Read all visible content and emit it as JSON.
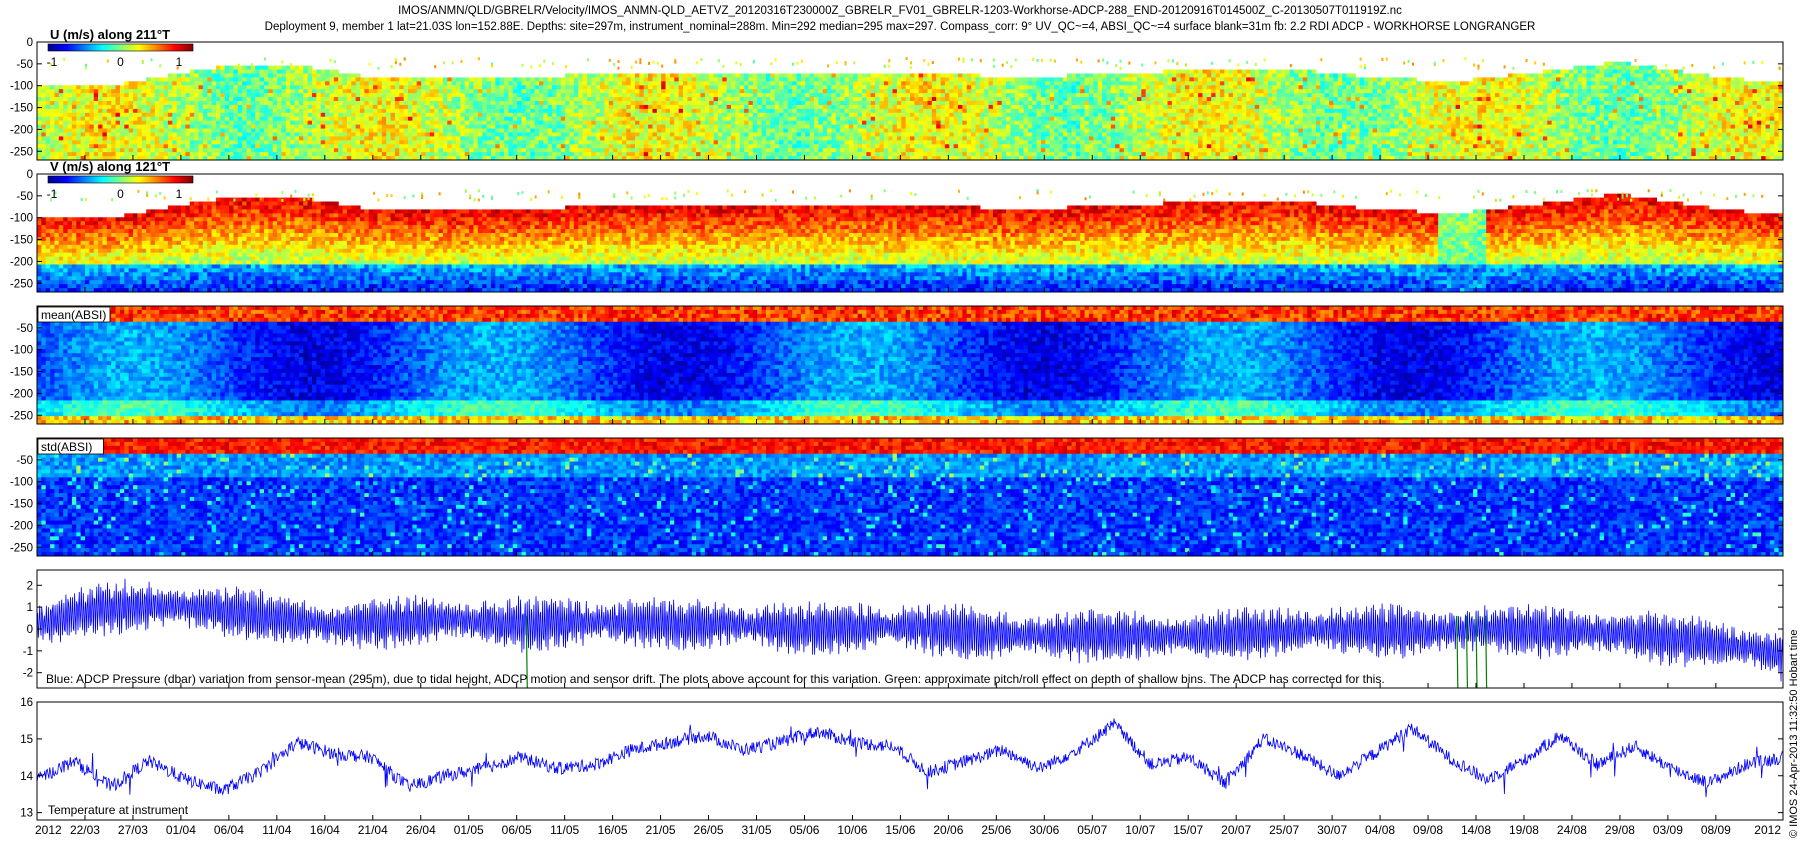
{
  "header": {
    "line1": "IMOS/ANMN/QLD/GBRELR/Velocity/IMOS_ANMN-QLD_AETVZ_20120316T230000Z_GBRELR_FV01_GBRELR-1203-Workhorse-ADCP-288_END-20120916T014500Z_C-20130507T011919Z.nc",
    "line2": "Deployment 9, member 1 lat=21.03S lon=152.88E. Depths: site=297m, instrument_nominal=288m. Min=292 median=295 max=297. Compass_corr: 9° UV_QC~=4, ABSI_QC~=4 surface blank=31m fb: 2.2 RDI ADCP - WORKHORSE LONGRANGER"
  },
  "side_label": "© IMOS 24-Apr-2013 11:32:50 Hobart time",
  "colors": {
    "trace_blue": "#0000ff",
    "trace_green": "#008000",
    "axis": "#000000"
  },
  "chart_data": [
    {
      "type": "heatmap",
      "title": "U (m/s) along 211°T",
      "yticks": [
        "0",
        "-50",
        "-100",
        "-150",
        "-200",
        "-250"
      ],
      "ylim": [
        -270,
        0
      ],
      "colorbar": {
        "min": -1,
        "max": 1,
        "ticks": [
          "-1",
          "0",
          "1"
        ]
      },
      "value_range": [
        -0.4,
        0.5
      ],
      "mean_value": 0.1
    },
    {
      "type": "heatmap",
      "title": "V (m/s) along 121°T",
      "yticks": [
        "0",
        "-50",
        "-100",
        "-150",
        "-200",
        "-250"
      ],
      "ylim": [
        -270,
        0
      ],
      "colorbar": {
        "min": -1,
        "max": 1,
        "ticks": [
          "-1",
          "0",
          "1"
        ]
      },
      "value_range": [
        -0.2,
        0.9
      ],
      "mean_value": 0.55
    },
    {
      "type": "heatmap",
      "title": "mean(ABSI)",
      "yticks": [
        "-50",
        "-100",
        "-150",
        "-200",
        "-250"
      ],
      "ylim": [
        -270,
        0
      ]
    },
    {
      "type": "heatmap",
      "title": "std(ABSI)",
      "yticks": [
        "-50",
        "-100",
        "-150",
        "-200",
        "-250"
      ],
      "ylim": [
        -270,
        0
      ]
    },
    {
      "type": "line",
      "yticks": [
        "2",
        "1",
        "0",
        "-1",
        "-2"
      ],
      "ylim": [
        -2.7,
        2.7
      ],
      "annotation": "Blue: ADCP Pressure (dbar) variation from sensor-mean (295m), due to tidal height, ADCP motion and sensor drift. The plots above account for this variation. Green: approximate pitch/roll effect on depth of shallow bins. The ADCP has corrected for this.",
      "series": [
        {
          "color": "#0000ff",
          "amplitude": 1.1,
          "trend_offsets": [
            0.6,
            1.3,
            1.5,
            1.3,
            0.9,
            0.6,
            0.7,
            0.9,
            0.6,
            0.7,
            0.7,
            0.6,
            0.6,
            0.4,
            0.5,
            0.5,
            0.2,
            0.1,
            0.1,
            0.1,
            0.1,
            0.2,
            0.4,
            0.3,
            0.3,
            0.4,
            0.3,
            0.2,
            0.0,
            -0.3,
            -0.8
          ]
        },
        {
          "color": "#008000",
          "spike_days": [
            51,
            148,
            149,
            150,
            151
          ]
        }
      ]
    },
    {
      "type": "line",
      "yticks": [
        "16",
        "15",
        "14",
        "13"
      ],
      "ylim": [
        12.8,
        16.0
      ],
      "annotation": "Temperature at instrument",
      "series": [
        {
          "color": "#0000ff",
          "values": [
            13.9,
            14.4,
            13.7,
            14.4,
            13.9,
            13.6,
            14.1,
            14.9,
            14.6,
            14.5,
            13.7,
            14.0,
            14.2,
            14.5,
            14.2,
            14.3,
            14.7,
            14.9,
            15.1,
            14.7,
            14.9,
            15.2,
            14.9,
            14.8,
            14.1,
            14.4,
            14.7,
            14.2,
            14.7,
            15.4,
            14.3,
            14.5,
            13.8,
            15.0,
            14.6,
            14.0,
            14.6,
            15.3,
            14.5,
            13.9,
            14.4,
            15.1,
            14.3,
            14.8,
            14.2,
            13.8,
            14.3,
            14.5
          ]
        }
      ]
    }
  ],
  "xaxis": {
    "ticks": [
      "2012",
      "22/03",
      "27/03",
      "01/04",
      "06/04",
      "11/04",
      "16/04",
      "21/04",
      "26/04",
      "01/05",
      "06/05",
      "11/05",
      "16/05",
      "21/05",
      "26/05",
      "31/05",
      "05/06",
      "10/06",
      "15/06",
      "20/06",
      "25/06",
      "30/06",
      "05/07",
      "10/07",
      "15/07",
      "20/07",
      "25/07",
      "30/07",
      "04/08",
      "09/08",
      "14/08",
      "19/08",
      "24/08",
      "29/08",
      "03/09",
      "08/09",
      "2012"
    ],
    "xlim": [
      "2012-03-17",
      "2012-09-16"
    ]
  }
}
